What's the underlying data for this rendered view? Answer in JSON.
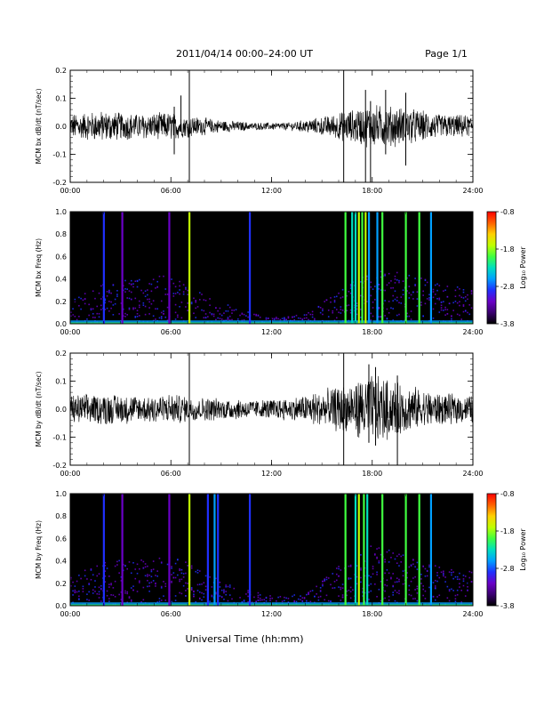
{
  "header": {
    "title": "2011/04/14  00:00–24:00 UT",
    "page": "Page 1/1"
  },
  "footer": {
    "xlabel": "Universal Time (hh:mm)"
  },
  "colors": {
    "trace": "#000000",
    "background": "#ffffff",
    "colorbar_stops": [
      "#000000",
      "#3a0070",
      "#6a00c8",
      "#2030ff",
      "#00a0ff",
      "#00e0c0",
      "#40ff40",
      "#c0ff00",
      "#ffd000",
      "#ff6000",
      "#ff0000"
    ]
  },
  "chart_data": [
    {
      "type": "line",
      "ylabel": "MCM bx dB/dt (nT/sec)",
      "xlim": [
        0,
        24
      ],
      "ylim": [
        -0.2,
        0.2
      ],
      "xticks": [
        "00:00",
        "06:00",
        "12:00",
        "18:00",
        "24:00"
      ],
      "yticks": [
        "-0.2",
        "-0.1",
        "0.0",
        "0.1",
        "0.2"
      ],
      "ytick_values": [
        -0.2,
        -0.1,
        0.0,
        0.1,
        0.2
      ],
      "envelope": [
        {
          "t": 0,
          "amp": 0.04
        },
        {
          "t": 2,
          "amp": 0.05
        },
        {
          "t": 4,
          "amp": 0.04
        },
        {
          "t": 6,
          "amp": 0.045
        },
        {
          "t": 7,
          "amp": 0.035
        },
        {
          "t": 9,
          "amp": 0.02
        },
        {
          "t": 11,
          "amp": 0.012
        },
        {
          "t": 13,
          "amp": 0.012
        },
        {
          "t": 15,
          "amp": 0.03
        },
        {
          "t": 16.5,
          "amp": 0.05
        },
        {
          "t": 18,
          "amp": 0.07
        },
        {
          "t": 20,
          "amp": 0.06
        },
        {
          "t": 22,
          "amp": 0.04
        },
        {
          "t": 24,
          "amp": 0.035
        }
      ],
      "spikes": [
        {
          "t": 6.2,
          "min": -0.1,
          "max": 0.07
        },
        {
          "t": 6.6,
          "min": -0.02,
          "max": 0.11
        },
        {
          "t": 7.1,
          "min": -0.2,
          "max": 0.2
        },
        {
          "t": 16.3,
          "min": -0.2,
          "max": 0.2
        },
        {
          "t": 17.6,
          "min": -0.2,
          "max": 0.13
        },
        {
          "t": 17.9,
          "min": -0.2,
          "max": 0.09
        },
        {
          "t": 18.8,
          "min": -0.1,
          "max": 0.13
        },
        {
          "t": 20.0,
          "min": -0.14,
          "max": 0.12
        }
      ]
    },
    {
      "type": "heatmap",
      "ylabel": "MCM bx Freq (Hz)",
      "xlim": [
        0,
        24
      ],
      "ylim": [
        0.0,
        1.0
      ],
      "xticks": [
        "00:00",
        "06:00",
        "12:00",
        "18:00",
        "24:00"
      ],
      "yticks": [
        "0.0",
        "0.2",
        "0.4",
        "0.6",
        "0.8",
        "1.0"
      ],
      "ytick_values": [
        0.0,
        0.2,
        0.4,
        0.6,
        0.8,
        1.0
      ],
      "colorbar": {
        "label": "Log₁₀ Power",
        "ticks": [
          "-0.8",
          "-1.8",
          "-2.8",
          "-3.8"
        ],
        "range": [
          -3.8,
          -0.8
        ]
      },
      "bands": [
        {
          "t": 2.0,
          "level": -2.8
        },
        {
          "t": 3.1,
          "level": -3.2
        },
        {
          "t": 5.9,
          "level": -3.3
        },
        {
          "t": 7.1,
          "level": -1.8
        },
        {
          "t": 10.7,
          "level": -3.0
        },
        {
          "t": 16.4,
          "level": -2.0
        },
        {
          "t": 16.8,
          "level": -2.4
        },
        {
          "t": 17.0,
          "level": -2.2
        },
        {
          "t": 17.2,
          "level": -1.6
        },
        {
          "t": 17.4,
          "level": -2.0
        },
        {
          "t": 17.6,
          "level": -1.7
        },
        {
          "t": 17.8,
          "level": -2.6
        },
        {
          "t": 18.3,
          "level": -2.7
        },
        {
          "t": 18.6,
          "level": -1.9
        },
        {
          "t": 20.0,
          "level": -1.9
        },
        {
          "t": 20.8,
          "level": -2.0
        },
        {
          "t": 21.5,
          "level": -2.6
        }
      ],
      "activity": [
        {
          "t": 0,
          "level": 0.2
        },
        {
          "t": 2,
          "level": 0.35
        },
        {
          "t": 4,
          "level": 0.4
        },
        {
          "t": 6,
          "level": 0.45
        },
        {
          "t": 8,
          "level": 0.25
        },
        {
          "t": 10,
          "level": 0.12
        },
        {
          "t": 12,
          "level": 0.05
        },
        {
          "t": 14,
          "level": 0.08
        },
        {
          "t": 16,
          "level": 0.3
        },
        {
          "t": 18,
          "level": 0.5
        },
        {
          "t": 20,
          "level": 0.45
        },
        {
          "t": 22,
          "level": 0.35
        },
        {
          "t": 24,
          "level": 0.3
        }
      ]
    },
    {
      "type": "line",
      "ylabel": "MCM by dB/dt (nT/sec)",
      "xlim": [
        0,
        24
      ],
      "ylim": [
        -0.2,
        0.2
      ],
      "xticks": [
        "00:00",
        "06:00",
        "12:00",
        "18:00",
        "24:00"
      ],
      "yticks": [
        "-0.2",
        "-0.1",
        "0.0",
        "0.1",
        "0.2"
      ],
      "ytick_values": [
        -0.2,
        -0.1,
        0.0,
        0.1,
        0.2
      ],
      "envelope": [
        {
          "t": 0,
          "amp": 0.045
        },
        {
          "t": 2,
          "amp": 0.05
        },
        {
          "t": 4,
          "amp": 0.045
        },
        {
          "t": 6,
          "amp": 0.05
        },
        {
          "t": 7,
          "amp": 0.04
        },
        {
          "t": 9,
          "amp": 0.035
        },
        {
          "t": 11,
          "amp": 0.03
        },
        {
          "t": 13,
          "amp": 0.035
        },
        {
          "t": 15,
          "amp": 0.06
        },
        {
          "t": 16.5,
          "amp": 0.08
        },
        {
          "t": 18,
          "amp": 0.11
        },
        {
          "t": 20,
          "amp": 0.08
        },
        {
          "t": 22,
          "amp": 0.05
        },
        {
          "t": 24,
          "amp": 0.045
        }
      ],
      "spikes": [
        {
          "t": 7.1,
          "min": -0.2,
          "max": 0.2
        },
        {
          "t": 16.3,
          "min": -0.2,
          "max": 0.2
        },
        {
          "t": 17.8,
          "min": -0.12,
          "max": 0.16
        },
        {
          "t": 19.5,
          "min": -0.2,
          "max": 0.12
        },
        {
          "t": 18.2,
          "min": -0.13,
          "max": 0.15
        }
      ]
    },
    {
      "type": "heatmap",
      "ylabel": "MCM by Freq (Hz)",
      "xlim": [
        0,
        24
      ],
      "ylim": [
        0.0,
        1.0
      ],
      "xticks": [
        "00:00",
        "06:00",
        "12:00",
        "18:00",
        "24:00"
      ],
      "yticks": [
        "0.0",
        "0.2",
        "0.4",
        "0.6",
        "0.8",
        "1.0"
      ],
      "ytick_values": [
        0.0,
        0.2,
        0.4,
        0.6,
        0.8,
        1.0
      ],
      "colorbar": {
        "label": "Log₁₀ Power",
        "ticks": [
          "-0.8",
          "-1.8",
          "-2.8",
          "-3.8"
        ],
        "range": [
          -3.8,
          -0.8
        ]
      },
      "bands": [
        {
          "t": 2.0,
          "level": -2.8
        },
        {
          "t": 3.1,
          "level": -3.2
        },
        {
          "t": 5.9,
          "level": -3.3
        },
        {
          "t": 7.1,
          "level": -1.8
        },
        {
          "t": 8.2,
          "level": -3.0
        },
        {
          "t": 8.6,
          "level": -2.7
        },
        {
          "t": 8.8,
          "level": -2.9
        },
        {
          "t": 10.7,
          "level": -3.0
        },
        {
          "t": 16.4,
          "level": -2.0
        },
        {
          "t": 17.0,
          "level": -2.2
        },
        {
          "t": 17.2,
          "level": -1.6
        },
        {
          "t": 17.5,
          "level": -1.9
        },
        {
          "t": 17.7,
          "level": -2.4
        },
        {
          "t": 18.6,
          "level": -1.9
        },
        {
          "t": 20.0,
          "level": -1.9
        },
        {
          "t": 20.8,
          "level": -2.0
        },
        {
          "t": 21.5,
          "level": -2.6
        }
      ],
      "activity": [
        {
          "t": 0,
          "level": 0.25
        },
        {
          "t": 2,
          "level": 0.4
        },
        {
          "t": 4,
          "level": 0.4
        },
        {
          "t": 6,
          "level": 0.45
        },
        {
          "t": 8,
          "level": 0.3
        },
        {
          "t": 10,
          "level": 0.15
        },
        {
          "t": 12,
          "level": 0.08
        },
        {
          "t": 14,
          "level": 0.1
        },
        {
          "t": 16,
          "level": 0.35
        },
        {
          "t": 18,
          "level": 0.55
        },
        {
          "t": 20,
          "level": 0.45
        },
        {
          "t": 22,
          "level": 0.35
        },
        {
          "t": 24,
          "level": 0.3
        }
      ]
    }
  ]
}
